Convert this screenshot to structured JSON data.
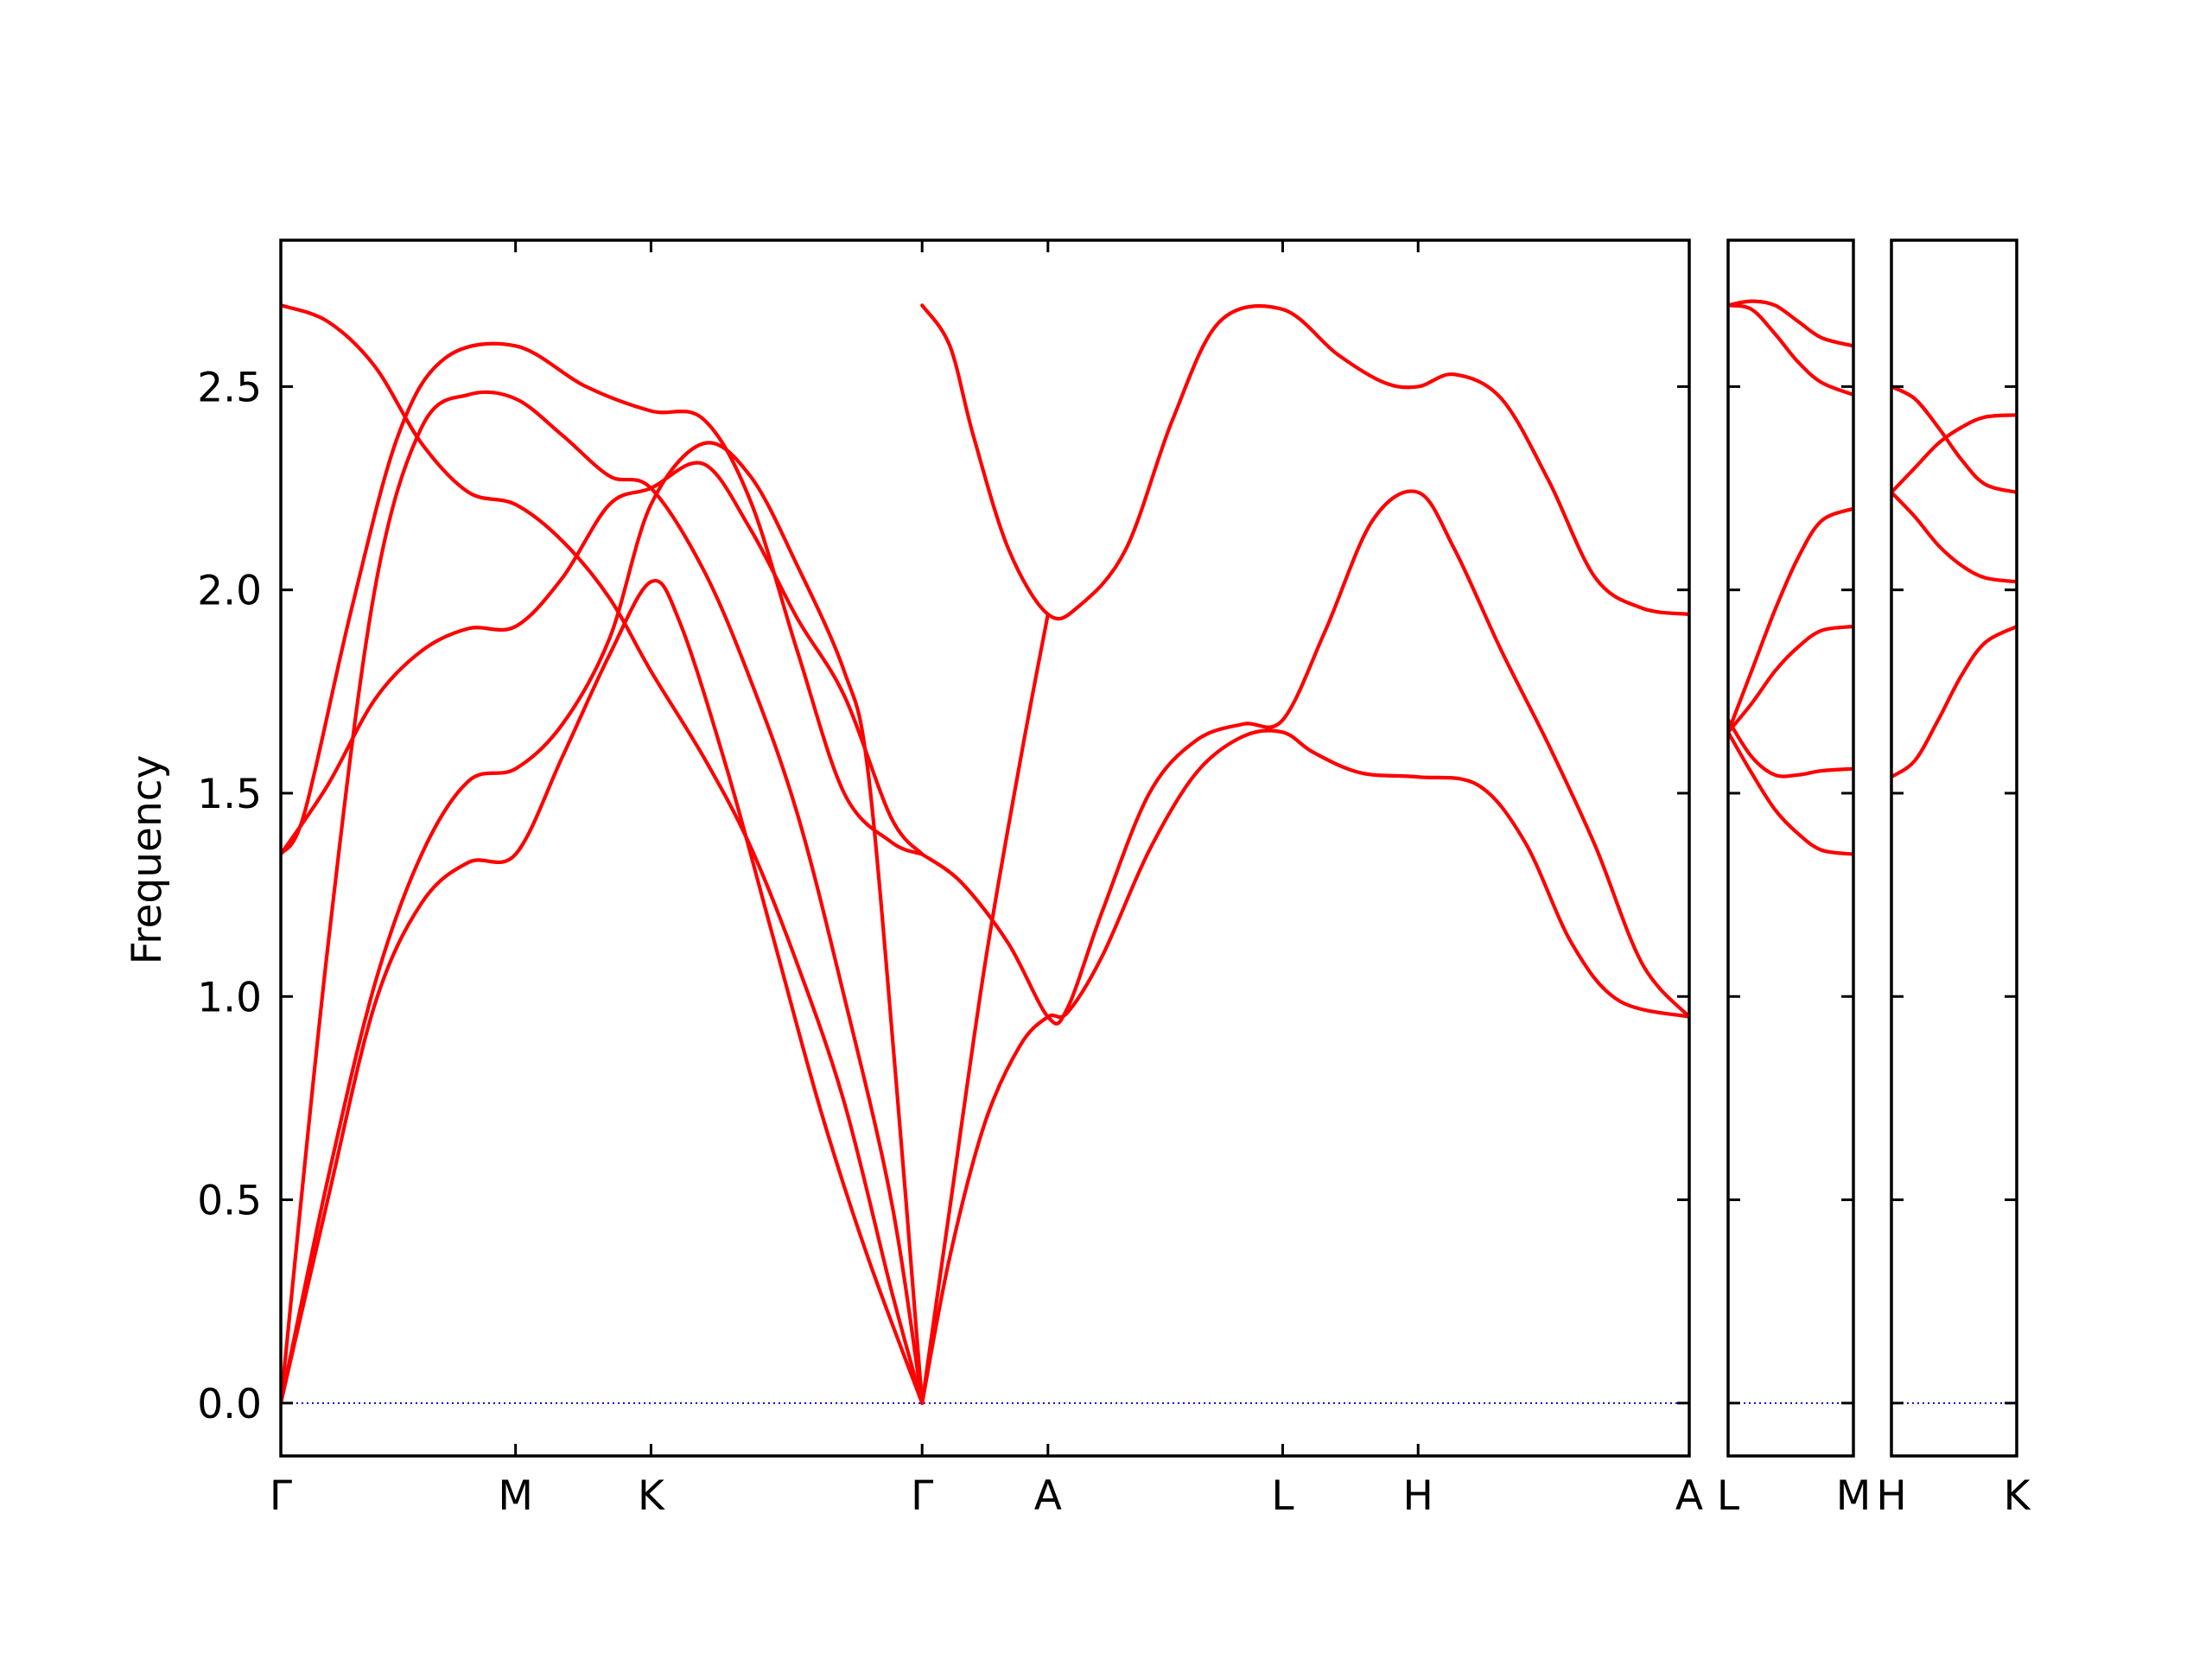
{
  "chart_data": {
    "type": "line",
    "title": "",
    "xlabel": "",
    "ylabel": "Frequency",
    "ylim": [
      -0.13,
      2.86
    ],
    "yticks": [
      0.0,
      0.5,
      1.0,
      1.5,
      2.0,
      2.5
    ],
    "ytick_labels": [
      "0.0",
      "0.5",
      "1.0",
      "1.5",
      "2.0",
      "2.5"
    ],
    "grid": false,
    "colors": {
      "band": "#ff0000",
      "zero_line": "#0000ff",
      "axes": "#000000"
    },
    "panels": [
      {
        "kpoints": [
          {
            "label": "Γ",
            "x": 0
          },
          {
            "label": "M",
            "x": 1.0
          },
          {
            "label": "K",
            "x": 1.577
          },
          {
            "label": "Γ",
            "x": 2.732
          },
          {
            "label": "A",
            "x": 3.268
          },
          {
            "label": "L",
            "x": 4.268
          },
          {
            "label": "H",
            "x": 4.845
          },
          {
            "label": "A",
            "x": 6.0
          }
        ],
        "bands": [
          [
            [
              0,
              2.7
            ],
            [
              0.2,
              2.66
            ],
            [
              0.4,
              2.55
            ],
            [
              0.6,
              2.36
            ],
            [
              0.8,
              2.24
            ],
            [
              1.0,
              2.21
            ],
            [
              1.2,
              2.12
            ],
            [
              1.4,
              1.98
            ],
            [
              1.577,
              1.8
            ],
            [
              1.8,
              1.59
            ],
            [
              2.0,
              1.37
            ],
            [
              2.2,
              1.08
            ],
            [
              2.4,
              0.74
            ],
            [
              2.6,
              0.28
            ],
            [
              2.732,
              0.0
            ]
          ],
          [
            [
              0,
              1.35
            ],
            [
              0.2,
              1.52
            ],
            [
              0.4,
              1.73
            ],
            [
              0.6,
              1.85
            ],
            [
              0.8,
              1.905
            ],
            [
              1.0,
              1.91
            ],
            [
              1.2,
              2.03
            ],
            [
              1.4,
              2.21
            ],
            [
              1.577,
              2.25
            ],
            [
              1.8,
              2.31
            ],
            [
              2.0,
              2.15
            ],
            [
              2.2,
              1.93
            ],
            [
              2.4,
              1.74
            ],
            [
              2.6,
              1.44
            ],
            [
              2.732,
              1.35
            ]
          ],
          [
            [
              0,
              1.35
            ],
            [
              0.1,
              1.45
            ],
            [
              0.3,
              1.95
            ],
            [
              0.5,
              2.38
            ],
            [
              0.7,
              2.57
            ],
            [
              1.0,
              2.6
            ],
            [
              1.3,
              2.5
            ],
            [
              1.577,
              2.44
            ],
            [
              1.8,
              2.42
            ],
            [
              2.0,
              2.22
            ],
            [
              2.2,
              1.85
            ],
            [
              2.4,
              1.5
            ],
            [
              2.6,
              1.38
            ],
            [
              2.732,
              1.35
            ]
          ],
          [
            [
              0,
              0.0
            ],
            [
              0.2,
              0.5
            ],
            [
              0.4,
              0.98
            ],
            [
              0.6,
              1.23
            ],
            [
              0.8,
              1.33
            ],
            [
              1.0,
              1.35
            ],
            [
              1.2,
              1.59
            ],
            [
              1.4,
              1.84
            ],
            [
              1.577,
              2.02
            ],
            [
              1.7,
              1.92
            ],
            [
              1.9,
              1.56
            ],
            [
              2.1,
              1.14
            ],
            [
              2.3,
              0.72
            ],
            [
              2.5,
              0.36
            ],
            [
              2.732,
              0.0
            ]
          ],
          [
            [
              0,
              0.0
            ],
            [
              0.2,
              0.55
            ],
            [
              0.4,
              1.03
            ],
            [
              0.6,
              1.35
            ],
            [
              0.8,
              1.53
            ],
            [
              1.0,
              1.56
            ],
            [
              1.2,
              1.67
            ],
            [
              1.4,
              1.88
            ],
            [
              1.577,
              2.21
            ],
            [
              1.8,
              2.36
            ],
            [
              2.0,
              2.28
            ],
            [
              2.2,
              2.06
            ],
            [
              2.4,
              1.8
            ],
            [
              2.5,
              1.56
            ],
            [
              2.62,
              0.8
            ],
            [
              2.732,
              0.0
            ]
          ],
          [
            [
              0,
              0.0
            ],
            [
              0.2,
              1.12
            ],
            [
              0.4,
              2.0
            ],
            [
              0.6,
              2.4
            ],
            [
              0.8,
              2.48
            ],
            [
              1.0,
              2.47
            ],
            [
              1.2,
              2.38
            ],
            [
              1.4,
              2.28
            ],
            [
              1.577,
              2.25
            ],
            [
              1.8,
              2.05
            ],
            [
              2.0,
              1.78
            ],
            [
              2.2,
              1.45
            ],
            [
              2.4,
              1.0
            ],
            [
              2.6,
              0.5
            ],
            [
              2.732,
              0.0
            ]
          ],
          [
            [
              2.732,
              2.7
            ],
            [
              2.85,
              2.6
            ],
            [
              2.95,
              2.38
            ],
            [
              3.1,
              2.1
            ],
            [
              3.268,
              1.94
            ],
            [
              3.4,
              1.96
            ],
            [
              3.6,
              2.1
            ],
            [
              3.8,
              2.42
            ],
            [
              4.0,
              2.66
            ],
            [
              4.268,
              2.69
            ],
            [
              4.5,
              2.58
            ],
            [
              4.7,
              2.51
            ],
            [
              4.845,
              2.5
            ],
            [
              5.0,
              2.53
            ],
            [
              5.2,
              2.47
            ],
            [
              5.4,
              2.27
            ],
            [
              5.6,
              2.03
            ],
            [
              5.8,
              1.955
            ],
            [
              6.0,
              1.94
            ]
          ],
          [
            [
              2.732,
              0.0
            ],
            [
              2.85,
              0.36
            ],
            [
              3.0,
              0.69
            ],
            [
              3.15,
              0.88
            ],
            [
              3.268,
              0.95
            ],
            [
              3.35,
              0.96
            ],
            [
              3.5,
              1.1
            ],
            [
              3.7,
              1.36
            ],
            [
              3.9,
              1.55
            ],
            [
              4.1,
              1.64
            ],
            [
              4.268,
              1.65
            ],
            [
              4.4,
              1.6
            ],
            [
              4.6,
              1.55
            ],
            [
              4.845,
              1.54
            ],
            [
              5.1,
              1.52
            ],
            [
              5.3,
              1.38
            ],
            [
              5.5,
              1.13
            ],
            [
              5.7,
              0.99
            ],
            [
              6.0,
              0.95
            ]
          ],
          [
            [
              2.732,
              1.35
            ],
            [
              2.9,
              1.28
            ],
            [
              3.1,
              1.13
            ],
            [
              3.268,
              0.95
            ],
            [
              3.35,
              0.97
            ],
            [
              3.5,
              1.21
            ],
            [
              3.7,
              1.5
            ],
            [
              3.9,
              1.63
            ],
            [
              4.1,
              1.67
            ],
            [
              4.268,
              1.68
            ],
            [
              4.45,
              1.9
            ],
            [
              4.65,
              2.17
            ],
            [
              4.845,
              2.24
            ],
            [
              5.0,
              2.1
            ],
            [
              5.2,
              1.85
            ],
            [
              5.4,
              1.62
            ],
            [
              5.6,
              1.37
            ],
            [
              5.8,
              1.08
            ],
            [
              6.0,
              0.95
            ]
          ],
          [
            [
              2.732,
              0.0
            ],
            [
              2.85,
              0.48
            ],
            [
              3.0,
              1.08
            ],
            [
              3.15,
              1.58
            ],
            [
              3.268,
              1.94
            ]
          ]
        ]
      },
      {
        "kpoints": [
          {
            "label": "L",
            "x": 0
          },
          {
            "label": "M",
            "x": 0.536
          }
        ],
        "bands": [
          [
            [
              0,
              2.7
            ],
            [
              0.1,
              2.69
            ],
            [
              0.2,
              2.63
            ],
            [
              0.3,
              2.56
            ],
            [
              0.4,
              2.51
            ],
            [
              0.536,
              2.48
            ]
          ],
          [
            [
              0,
              2.7
            ],
            [
              0.1,
              2.71
            ],
            [
              0.2,
              2.7
            ],
            [
              0.3,
              2.66
            ],
            [
              0.4,
              2.62
            ],
            [
              0.536,
              2.6
            ]
          ],
          [
            [
              0,
              1.65
            ],
            [
              0.1,
              1.8
            ],
            [
              0.2,
              1.95
            ],
            [
              0.3,
              2.08
            ],
            [
              0.4,
              2.17
            ],
            [
              0.536,
              2.2
            ]
          ],
          [
            [
              0,
              1.65
            ],
            [
              0.1,
              1.72
            ],
            [
              0.2,
              1.8
            ],
            [
              0.3,
              1.86
            ],
            [
              0.4,
              1.9
            ],
            [
              0.536,
              1.91
            ]
          ],
          [
            [
              0,
              1.68
            ],
            [
              0.1,
              1.59
            ],
            [
              0.2,
              1.545
            ],
            [
              0.3,
              1.545
            ],
            [
              0.4,
              1.555
            ],
            [
              0.536,
              1.56
            ]
          ],
          [
            [
              0,
              1.65
            ],
            [
              0.1,
              1.55
            ],
            [
              0.2,
              1.46
            ],
            [
              0.3,
              1.4
            ],
            [
              0.4,
              1.36
            ],
            [
              0.536,
              1.35
            ]
          ]
        ]
      },
      {
        "kpoints": [
          {
            "label": "H",
            "x": 0
          },
          {
            "label": "K",
            "x": 0.536
          }
        ],
        "bands": [
          [
            [
              0,
              2.5
            ],
            [
              0.1,
              2.47
            ],
            [
              0.2,
              2.4
            ],
            [
              0.3,
              2.32
            ],
            [
              0.4,
              2.26
            ],
            [
              0.536,
              2.24
            ]
          ],
          [
            [
              0,
              2.24
            ],
            [
              0.1,
              2.3
            ],
            [
              0.2,
              2.36
            ],
            [
              0.3,
              2.4
            ],
            [
              0.4,
              2.425
            ],
            [
              0.536,
              2.43
            ]
          ],
          [
            [
              0,
              2.24
            ],
            [
              0.1,
              2.18
            ],
            [
              0.2,
              2.11
            ],
            [
              0.3,
              2.06
            ],
            [
              0.4,
              2.03
            ],
            [
              0.536,
              2.02
            ]
          ],
          [
            [
              0,
              1.54
            ],
            [
              0.1,
              1.58
            ],
            [
              0.2,
              1.68
            ],
            [
              0.3,
              1.79
            ],
            [
              0.4,
              1.87
            ],
            [
              0.536,
              1.91
            ]
          ]
        ]
      }
    ]
  }
}
